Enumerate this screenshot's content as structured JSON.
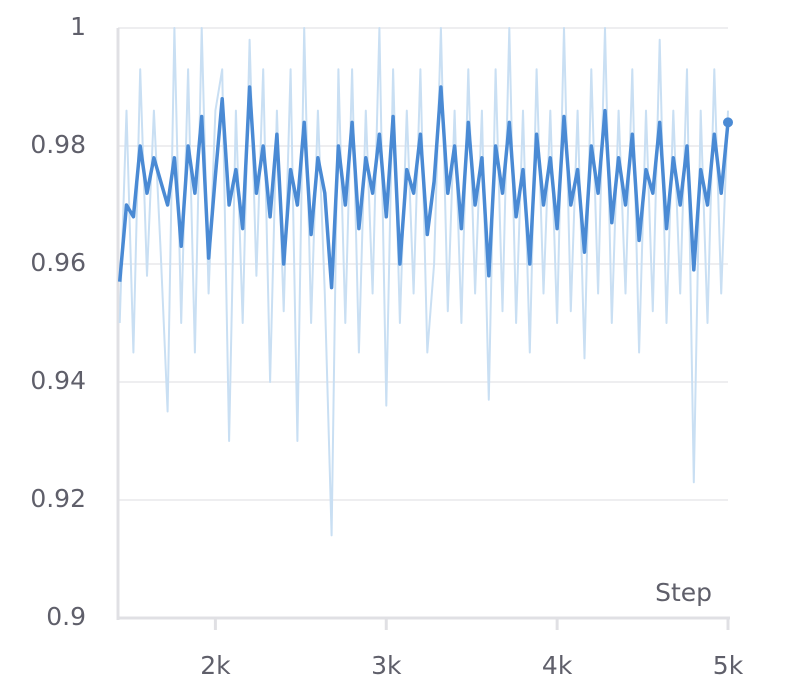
{
  "chart_data": {
    "type": "line",
    "x_label": "Step",
    "x": [
      1440,
      1480,
      1520,
      1560,
      1600,
      1640,
      1680,
      1720,
      1760,
      1800,
      1840,
      1880,
      1920,
      1960,
      2000,
      2040,
      2080,
      2120,
      2160,
      2200,
      2240,
      2280,
      2320,
      2360,
      2400,
      2440,
      2480,
      2520,
      2560,
      2600,
      2640,
      2680,
      2720,
      2760,
      2800,
      2840,
      2880,
      2920,
      2960,
      3000,
      3040,
      3080,
      3120,
      3160,
      3200,
      3240,
      3280,
      3320,
      3360,
      3400,
      3440,
      3480,
      3520,
      3560,
      3600,
      3640,
      3680,
      3720,
      3760,
      3800,
      3840,
      3880,
      3920,
      3960,
      4000,
      4040,
      4080,
      4120,
      4160,
      4200,
      4240,
      4280,
      4320,
      4360,
      4400,
      4440,
      4480,
      4520,
      4560,
      4600,
      4640,
      4680,
      4720,
      4760,
      4800,
      4840,
      4880,
      4920,
      4960,
      5000
    ],
    "series": [
      {
        "color": "#c9dff3",
        "values": [
          0.95,
          0.986,
          0.945,
          0.993,
          0.958,
          0.986,
          0.962,
          0.935,
          1.0,
          0.95,
          0.993,
          0.945,
          1.0,
          0.955,
          0.986,
          0.993,
          0.93,
          0.986,
          0.95,
          0.998,
          0.958,
          0.993,
          0.94,
          0.986,
          0.952,
          0.993,
          0.93,
          1.0,
          0.95,
          0.986,
          0.955,
          0.914,
          0.993,
          0.95,
          0.993,
          0.945,
          0.986,
          0.955,
          1.0,
          0.936,
          0.993,
          0.95,
          0.986,
          0.955,
          0.993,
          0.945,
          0.96,
          1.0,
          0.952,
          0.986,
          0.95,
          0.993,
          0.955,
          0.986,
          0.937,
          0.993,
          0.952,
          1.0,
          0.95,
          0.986,
          0.945,
          0.993,
          0.955,
          0.986,
          0.95,
          1.0,
          0.952,
          0.986,
          0.944,
          0.993,
          0.955,
          1.0,
          0.95,
          0.986,
          0.955,
          0.993,
          0.945,
          0.986,
          0.952,
          0.998,
          0.95,
          0.986,
          0.955,
          0.993,
          0.923,
          0.986,
          0.95,
          0.993,
          0.955,
          0.986
        ]
      },
      {
        "color": "#4a8ad4",
        "values": [
          0.957,
          0.97,
          0.968,
          0.98,
          0.972,
          0.978,
          0.974,
          0.97,
          0.978,
          0.963,
          0.98,
          0.972,
          0.985,
          0.961,
          0.975,
          0.988,
          0.97,
          0.976,
          0.966,
          0.99,
          0.972,
          0.98,
          0.968,
          0.982,
          0.96,
          0.976,
          0.97,
          0.984,
          0.965,
          0.978,
          0.972,
          0.956,
          0.98,
          0.97,
          0.984,
          0.966,
          0.978,
          0.972,
          0.982,
          0.968,
          0.985,
          0.96,
          0.976,
          0.972,
          0.982,
          0.965,
          0.974,
          0.99,
          0.972,
          0.98,
          0.966,
          0.984,
          0.97,
          0.978,
          0.958,
          0.98,
          0.972,
          0.984,
          0.968,
          0.976,
          0.96,
          0.982,
          0.97,
          0.978,
          0.966,
          0.985,
          0.97,
          0.976,
          0.962,
          0.98,
          0.972,
          0.986,
          0.967,
          0.978,
          0.97,
          0.982,
          0.964,
          0.976,
          0.972,
          0.984,
          0.966,
          0.978,
          0.97,
          0.98,
          0.959,
          0.976,
          0.97,
          0.982,
          0.972,
          0.984
        ]
      }
    ],
    "xlim": [
      1430,
      5000
    ],
    "ylim": [
      0.9,
      1
    ],
    "xticks": [
      {
        "value": 2000,
        "label": "2k"
      },
      {
        "value": 3000,
        "label": "3k"
      },
      {
        "value": 4000,
        "label": "4k"
      },
      {
        "value": 5000,
        "label": "5k"
      }
    ],
    "yticks": [
      0.9,
      0.92,
      0.94,
      0.96,
      0.98,
      1
    ],
    "grid": true
  }
}
